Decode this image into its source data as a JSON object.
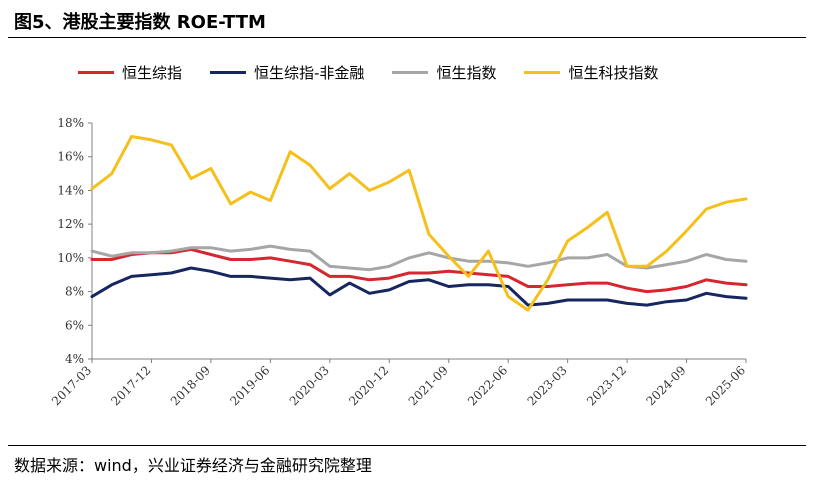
{
  "header": {
    "title": "图5、港股主要指数 ROE-TTM"
  },
  "footer": {
    "source": "数据来源：wind，兴业证券经济与金融研究院整理"
  },
  "chart_data": {
    "type": "line",
    "title": "图5、港股主要指数 ROE-TTM",
    "xlabel": "",
    "ylabel": "",
    "ylim": [
      4,
      18
    ],
    "y_ticks": [
      "4%",
      "6%",
      "8%",
      "10%",
      "12%",
      "14%",
      "16%",
      "18%"
    ],
    "x_tick_labels": [
      "2017-03",
      "2017-12",
      "2018-09",
      "2019-06",
      "2020-03",
      "2020-12",
      "2021-09",
      "2022-06",
      "2023-03",
      "2023-12",
      "2024-09",
      "2025-06"
    ],
    "grid": false,
    "legend": "top",
    "x": [
      "2017-03",
      "2017-06",
      "2017-09",
      "2017-12",
      "2018-03",
      "2018-06",
      "2018-09",
      "2018-12",
      "2019-03",
      "2019-06",
      "2019-09",
      "2019-12",
      "2020-03",
      "2020-06",
      "2020-09",
      "2020-12",
      "2021-03",
      "2021-06",
      "2021-09",
      "2021-12",
      "2022-03",
      "2022-06",
      "2022-09",
      "2022-12",
      "2023-03",
      "2023-06",
      "2023-09",
      "2023-12",
      "2024-03",
      "2024-06",
      "2024-09",
      "2024-12",
      "2025-03",
      "2025-06"
    ],
    "series": [
      {
        "name": "恒生综指",
        "color": "#d6262f",
        "values": [
          9.9,
          9.9,
          10.2,
          10.3,
          10.3,
          10.5,
          10.2,
          9.9,
          9.9,
          10.0,
          9.8,
          9.6,
          8.9,
          8.9,
          8.7,
          8.8,
          9.1,
          9.1,
          9.2,
          9.1,
          9.0,
          8.9,
          8.3,
          8.3,
          8.4,
          8.5,
          8.5,
          8.2,
          8.0,
          8.1,
          8.3,
          8.7,
          8.5,
          8.4
        ]
      },
      {
        "name": "恒生综指-非金融",
        "color": "#16265f",
        "values": [
          7.7,
          8.4,
          8.9,
          9.0,
          9.1,
          9.4,
          9.2,
          8.9,
          8.9,
          8.8,
          8.7,
          8.8,
          7.8,
          8.5,
          7.9,
          8.1,
          8.6,
          8.7,
          8.3,
          8.4,
          8.4,
          8.3,
          7.2,
          7.3,
          7.5,
          7.5,
          7.5,
          7.3,
          7.2,
          7.4,
          7.5,
          7.9,
          7.7,
          7.6
        ]
      },
      {
        "name": "恒生指数",
        "color": "#a6a6a6",
        "values": [
          10.4,
          10.1,
          10.3,
          10.3,
          10.4,
          10.6,
          10.6,
          10.4,
          10.5,
          10.7,
          10.5,
          10.4,
          9.5,
          9.4,
          9.3,
          9.5,
          10.0,
          10.3,
          10.0,
          9.8,
          9.8,
          9.7,
          9.5,
          9.7,
          10.0,
          10.0,
          10.2,
          9.5,
          9.4,
          9.6,
          9.8,
          10.2,
          9.9,
          9.8
        ]
      },
      {
        "name": "恒生科技指数",
        "color": "#f5c01b",
        "values": [
          14.1,
          15.0,
          17.2,
          17.0,
          16.7,
          14.7,
          15.3,
          13.2,
          13.9,
          13.4,
          16.3,
          15.5,
          14.1,
          15.0,
          14.0,
          14.5,
          15.2,
          11.4,
          10.1,
          8.9,
          10.4,
          7.7,
          6.9,
          8.7,
          11.0,
          11.8,
          12.7,
          9.5,
          9.5,
          10.4,
          11.6,
          12.9,
          13.3,
          13.5
        ]
      }
    ]
  }
}
